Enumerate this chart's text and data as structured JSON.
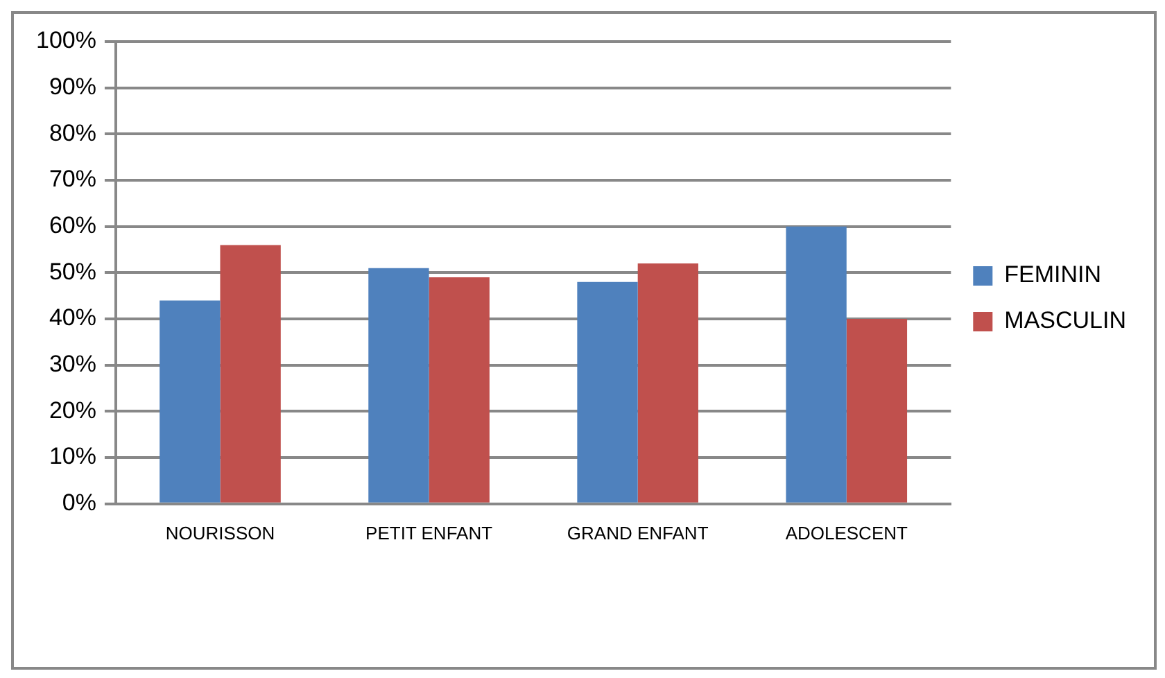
{
  "chart_data": {
    "type": "bar",
    "categories": [
      "NOURISSON",
      "PETIT ENFANT",
      "GRAND ENFANT",
      "ADOLESCENT"
    ],
    "series": [
      {
        "name": "FEMININ",
        "color": "#4f81bd",
        "values": [
          44,
          51,
          48,
          60
        ]
      },
      {
        "name": "MASCULIN",
        "color": "#c0504d",
        "values": [
          56,
          49,
          52,
          40
        ]
      }
    ],
    "ylim": [
      0,
      100
    ],
    "yticks": [
      {
        "value": 0,
        "label": "0%"
      },
      {
        "value": 10,
        "label": "10%"
      },
      {
        "value": 20,
        "label": "20%"
      },
      {
        "value": 30,
        "label": "30%"
      },
      {
        "value": 40,
        "label": "40%"
      },
      {
        "value": 50,
        "label": "50%"
      },
      {
        "value": 60,
        "label": "60%"
      },
      {
        "value": 70,
        "label": "70%"
      },
      {
        "value": 80,
        "label": "80%"
      },
      {
        "value": 90,
        "label": "90%"
      },
      {
        "value": 100,
        "label": "100%"
      }
    ],
    "grid": "y",
    "legend": "right"
  }
}
